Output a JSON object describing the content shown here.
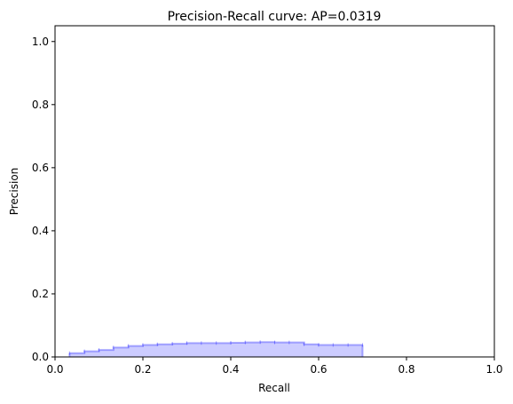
{
  "chart_data": {
    "type": "area",
    "title": "Precision-Recall curve: AP=0.0319",
    "xlabel": "Recall",
    "ylabel": "Precision",
    "xlim": [
      0.0,
      1.0
    ],
    "ylim": [
      0.0,
      1.05
    ],
    "xticks": [
      0.0,
      0.2,
      0.4,
      0.6,
      0.8,
      1.0
    ],
    "yticks": [
      0.0,
      0.2,
      0.4,
      0.6,
      0.8,
      1.0
    ],
    "xtick_labels": [
      "0.0",
      "0.2",
      "0.4",
      "0.6",
      "0.8",
      "1.0"
    ],
    "ytick_labels": [
      "0.0",
      "0.2",
      "0.4",
      "0.6",
      "0.8",
      "1.0"
    ],
    "step": "post",
    "color": "#0000ff",
    "fill_color": "#ccccff",
    "recall": [
      0.033,
      0.067,
      0.1,
      0.133,
      0.167,
      0.2,
      0.233,
      0.267,
      0.3,
      0.333,
      0.367,
      0.4,
      0.433,
      0.467,
      0.5,
      0.533,
      0.567,
      0.6,
      0.633,
      0.667,
      0.7
    ],
    "precision": [
      0.012,
      0.018,
      0.022,
      0.03,
      0.035,
      0.038,
      0.04,
      0.042,
      0.044,
      0.044,
      0.044,
      0.045,
      0.046,
      0.047,
      0.046,
      0.046,
      0.04,
      0.038,
      0.038,
      0.038,
      0.038
    ]
  }
}
